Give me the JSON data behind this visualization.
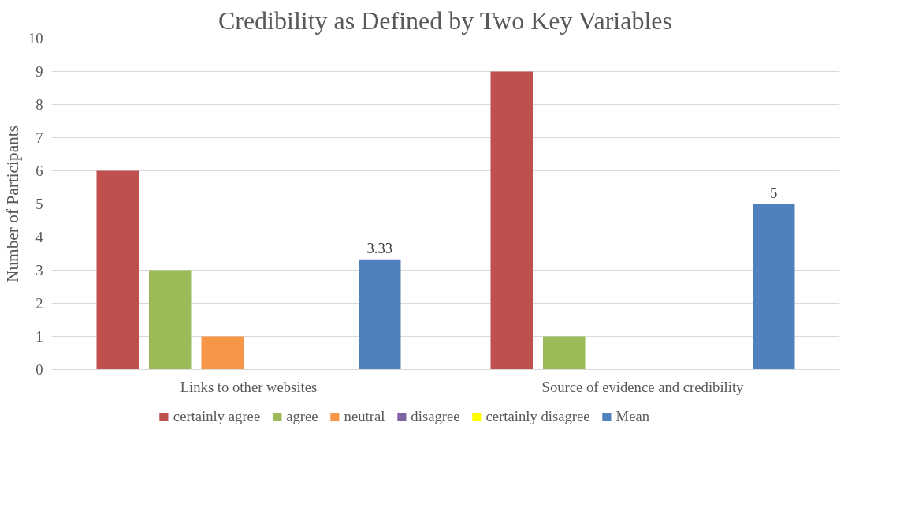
{
  "chart_data": {
    "type": "bar",
    "title": "Credibility as Defined by Two Key Variables",
    "ylabel": "Number of Participants",
    "categories": [
      "Links to other websites",
      "Source of evidence and credibility"
    ],
    "series": [
      {
        "name": "certainly agree",
        "color": "#c0504d",
        "values": [
          6,
          9
        ]
      },
      {
        "name": "agree",
        "color": "#9bbb59",
        "values": [
          3,
          1
        ]
      },
      {
        "name": "neutral",
        "color": "#f79646",
        "values": [
          1,
          0
        ]
      },
      {
        "name": "disagree",
        "color": "#8064a2",
        "values": [
          0,
          0
        ]
      },
      {
        "name": "certainly disagree",
        "color": "#ffff00",
        "values": [
          0,
          0
        ]
      },
      {
        "name": "Mean",
        "color": "#4f81bd",
        "values": [
          3.33,
          5
        ],
        "value_labels": [
          "3.33",
          "5"
        ]
      }
    ],
    "ylim": [
      0,
      10
    ],
    "yticks": [
      0,
      1,
      2,
      3,
      4,
      5,
      6,
      7,
      8,
      9,
      10
    ],
    "grid": "y",
    "legend": "bottom"
  }
}
